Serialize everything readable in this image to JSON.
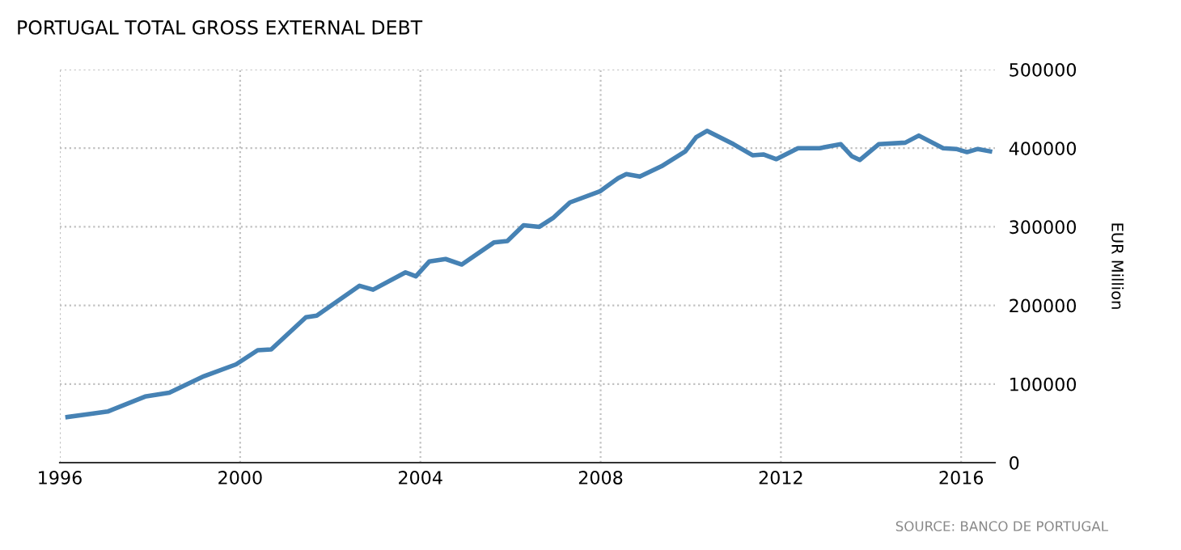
{
  "chart_data": {
    "type": "line",
    "title": "PORTUGAL TOTAL GROSS EXTERNAL DEBT",
    "ylabel": "EUR Million",
    "annotations": [
      "SOURCE: BANCO DE PORTUGAL"
    ],
    "x": [
      1996.17,
      1997.06,
      1997.89,
      1998.43,
      1999.2,
      1999.91,
      2000.39,
      2000.69,
      2001.46,
      2001.7,
      2002.65,
      2002.95,
      2003.67,
      2003.9,
      2004.2,
      2004.56,
      2004.92,
      2005.63,
      2005.93,
      2006.29,
      2006.64,
      2006.94,
      2007.32,
      2007.98,
      2008.39,
      2008.57,
      2008.87,
      2009.35,
      2009.88,
      2010.12,
      2010.36,
      2010.95,
      2011.37,
      2011.61,
      2011.9,
      2012.38,
      2012.86,
      2013.33,
      2013.57,
      2013.75,
      2014.17,
      2014.76,
      2015.06,
      2015.6,
      2015.89,
      2016.13,
      2016.37,
      2016.64
    ],
    "series": [
      {
        "color": "#4682b4",
        "values": [
          58000,
          65000,
          84000,
          89000,
          110000,
          125000,
          143000,
          144000,
          185000,
          187000,
          225000,
          220000,
          242000,
          237000,
          256000,
          259000,
          252000,
          280000,
          282000,
          302000,
          300000,
          311000,
          331000,
          345000,
          362000,
          367000,
          364000,
          377000,
          396000,
          414000,
          422000,
          405000,
          391000,
          392000,
          386000,
          400000,
          400000,
          405000,
          390000,
          385000,
          405000,
          407000,
          416000,
          400000,
          399000,
          395000,
          399000,
          396000
        ]
      }
    ],
    "xlim": [
      1996,
      2016.75
    ],
    "xticks": [
      {
        "value": 1996,
        "label": "1996"
      },
      {
        "value": 2000,
        "label": "2000"
      },
      {
        "value": 2004,
        "label": "2004"
      },
      {
        "value": 2008,
        "label": "2008"
      },
      {
        "value": 2012,
        "label": "2012"
      },
      {
        "value": 2016,
        "label": "2016"
      }
    ],
    "ylim": [
      0,
      500000
    ],
    "yticks": [
      0,
      100000,
      200000,
      300000,
      400000,
      500000
    ],
    "grid": true,
    "legend": false,
    "marker": "none",
    "line_style": "solid"
  }
}
